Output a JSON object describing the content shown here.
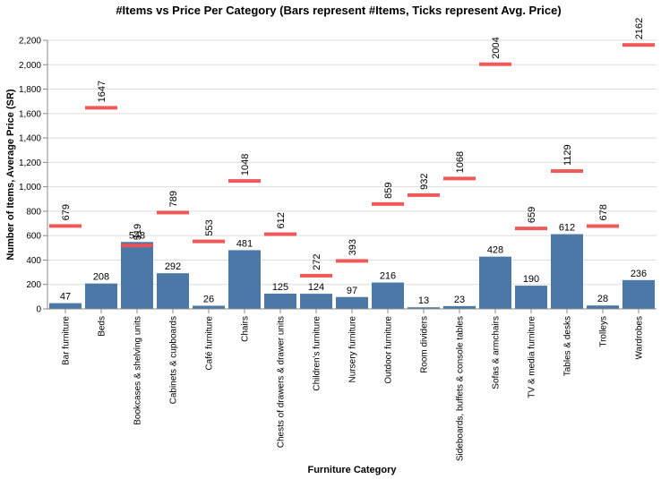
{
  "chart_data": {
    "type": "bar",
    "title": "#Items vs Price Per Category (Bars represent #Items, Ticks represent Avg. Price)",
    "xlabel": "Furniture Category",
    "ylabel": "Number of Items, Average Price (SR)",
    "ylim": [
      0,
      2200
    ],
    "yticks": [
      0,
      200,
      400,
      600,
      800,
      1000,
      1200,
      1400,
      1600,
      1800,
      2000,
      2200
    ],
    "ytick_labels": [
      "0",
      "200",
      "400",
      "600",
      "800",
      "1,000",
      "1,200",
      "1,400",
      "1,600",
      "1,800",
      "2,000",
      "2,200"
    ],
    "grid": true,
    "categories": [
      "Bar furniture",
      "Beds",
      "Bookcases & shelving units",
      "Cabinets & cupboards",
      "Café furniture",
      "Chairs",
      "Chests of drawers & drawer units",
      "Children's furniture",
      "Nursery furniture",
      "Outdoor furniture",
      "Room dividers",
      "Sideboards, buffets & console tables",
      "Sofas & armchairs",
      "TV & media furniture",
      "Tables & desks",
      "Trolleys",
      "Wardrobes"
    ],
    "series": [
      {
        "name": "#Items",
        "mark": "bar",
        "color": "#4c78a8",
        "values": [
          47,
          208,
          548,
          292,
          26,
          481,
          125,
          124,
          97,
          216,
          13,
          23,
          428,
          190,
          612,
          28,
          236
        ]
      },
      {
        "name": "Avg. Price",
        "mark": "tick",
        "color": "#f05050",
        "values": [
          679,
          1647,
          519,
          789,
          553,
          1048,
          612,
          272,
          393,
          859,
          932,
          1068,
          2004,
          659,
          1129,
          678,
          2162
        ]
      }
    ]
  }
}
